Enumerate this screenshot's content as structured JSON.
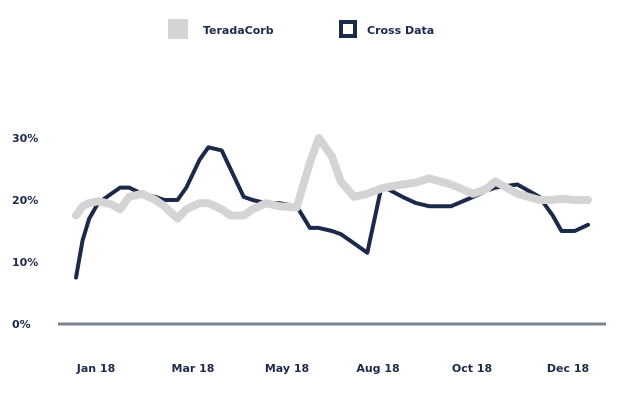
{
  "chart_data": {
    "type": "line",
    "title": "",
    "xlabel": "",
    "ylabel": "",
    "x_tick_labels": [
      "Jan 18",
      "Mar 18",
      "May 18",
      "Aug 18",
      "Oct 18",
      "Dec 18"
    ],
    "y_tick_labels": [
      "0%",
      "10%",
      "20%",
      "30%"
    ],
    "ylim": [
      0,
      30
    ],
    "legend_position": "top",
    "grid": false,
    "x": [
      0.0,
      0.15,
      0.3,
      0.5,
      0.8,
      1.0,
      1.2,
      1.5,
      1.8,
      2.0,
      2.3,
      2.5,
      2.8,
      3.0,
      3.3,
      3.5,
      3.8,
      4.0,
      4.3,
      4.6,
      5.0,
      5.3,
      5.5,
      5.8,
      6.0,
      6.3,
      6.6,
      6.9,
      7.0,
      7.4,
      7.7,
      8.0,
      8.5,
      9.0,
      9.3,
      9.5,
      10.0,
      10.5,
      10.8,
      11.0,
      11.3,
      11.6
    ],
    "series": [
      {
        "name": "TeradaCorb",
        "color": "#d4d4d4",
        "values": [
          17.5,
          19.0,
          19.5,
          19.8,
          19.3,
          18.5,
          20.5,
          21.0,
          20.0,
          19.0,
          17.0,
          18.5,
          19.5,
          19.5,
          18.5,
          17.5,
          17.5,
          18.5,
          19.5,
          19.0,
          18.8,
          26.0,
          30.0,
          27.0,
          23.0,
          20.5,
          21.0,
          21.8,
          22.0,
          22.5,
          22.8,
          23.5,
          22.5,
          21.0,
          21.8,
          23.0,
          21.0,
          20.0,
          20.0,
          20.2,
          20.0,
          20.0
        ]
      },
      {
        "name": "Cross Data",
        "color": "#1b2a4a",
        "values": [
          7.5,
          13.5,
          17.0,
          19.5,
          21.0,
          22.0,
          22.0,
          21.0,
          20.5,
          20.0,
          20.0,
          22.0,
          26.5,
          28.5,
          28.0,
          25.0,
          20.5,
          20.0,
          19.5,
          19.5,
          19.0,
          15.5,
          15.5,
          15.0,
          14.5,
          13.0,
          11.5,
          21.5,
          22.0,
          20.5,
          19.5,
          19.0,
          19.0,
          20.5,
          21.5,
          22.0,
          22.5,
          20.5,
          17.5,
          15.0,
          15.0,
          16.0
        ]
      }
    ]
  }
}
